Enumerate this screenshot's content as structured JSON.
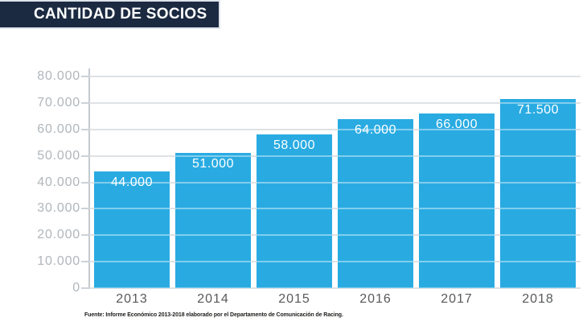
{
  "header": {
    "title": "CANTIDAD DE SOCIOS"
  },
  "chart_data": {
    "type": "bar",
    "title": "CANTIDAD DE SOCIOS",
    "categories": [
      "2013",
      "2014",
      "2015",
      "2016",
      "2017",
      "2018"
    ],
    "values": [
      44000,
      51000,
      58000,
      64000,
      66000,
      71500
    ],
    "bar_labels": [
      "44.000",
      "51.000",
      "58.000",
      "64.000",
      "66.000",
      "71.500"
    ],
    "xlabel": "",
    "ylabel": "",
    "ylim": [
      0,
      80000
    ],
    "ytick_step": 10000,
    "ytick_labels": [
      "80.000",
      "70.000",
      "60.000",
      "50.000",
      "40.000",
      "30.000",
      "20.000",
      "10.000",
      "0"
    ],
    "grid": "horizontal gridlines drawn over bars",
    "legend": false,
    "bar_color": "#29abe2",
    "value_label_color": "#ffffff"
  },
  "footer": {
    "source": "Fuente: Informe Económico 2013-2018 elaborado por el Departamento de Comunicación de Racing."
  },
  "colors": {
    "background": "#ffffff",
    "header_bg": "#1b2a41",
    "header_text": "#ffffff",
    "bar": "#29abe2",
    "gridline": "#dfe3e6",
    "axis_line": "#c3cad0",
    "y_tick_label": "#b0b6bb",
    "x_tick_label": "#58595b",
    "source_text": "#1d1d1b"
  }
}
